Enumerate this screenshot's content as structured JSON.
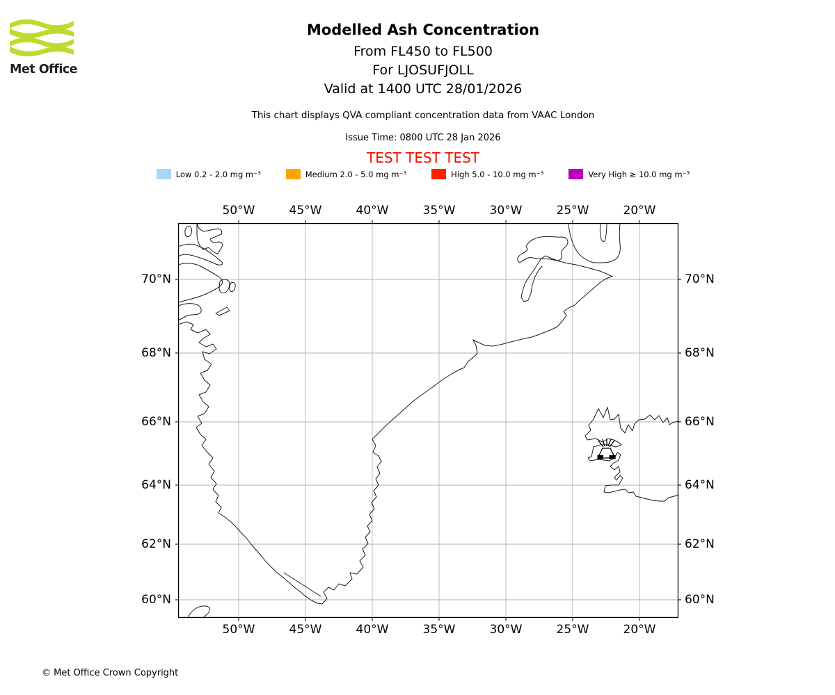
{
  "logo": {
    "text": "Met Office",
    "brand_color": "#bcdc2d"
  },
  "header": {
    "title": "Modelled Ash Concentration",
    "subtitle_lines": [
      "From FL450 to FL500",
      "For LJOSUFJOLL",
      "Valid at 1400 UTC 28/01/2026"
    ],
    "description": "This chart displays QVA compliant concentration data from VAAC London",
    "issue_time": "Issue Time: 0800 UTC 28 Jan 2026",
    "test_banner": "TEST TEST TEST",
    "test_color": "#f01000"
  },
  "legend": {
    "items": [
      {
        "name": "low",
        "label": "Low 0.2 - 2.0 mg m⁻³",
        "color": "#a8d6f7"
      },
      {
        "name": "medium",
        "label": "Medium 2.0 - 5.0 mg m⁻³",
        "color": "#ffa500"
      },
      {
        "name": "high",
        "label": "High 5.0 - 10.0 mg m⁻³",
        "color": "#ff2000"
      },
      {
        "name": "very-high",
        "label": "Very High ≥ 10.0 mg m⁻³",
        "color": "#bb00bb"
      }
    ]
  },
  "map": {
    "lon_labels": [
      "50°W",
      "45°W",
      "40°W",
      "35°W",
      "30°W",
      "25°W",
      "20°W"
    ],
    "lat_labels": [
      "70°N",
      "68°N",
      "66°N",
      "64°N",
      "62°N",
      "60°N"
    ],
    "features": [
      "Greenland coastline",
      "Iceland coastline",
      "volcano marker"
    ]
  },
  "footer": {
    "copyright": "© Met Office Crown Copyright"
  }
}
